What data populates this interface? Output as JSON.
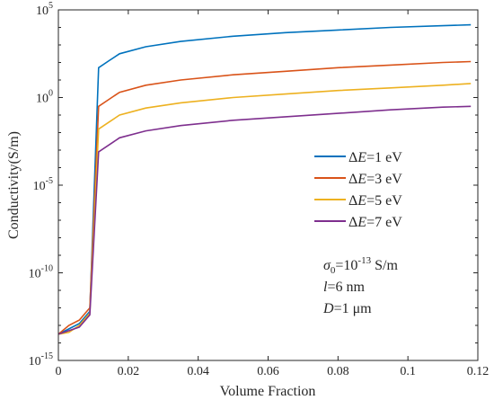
{
  "chart_data": {
    "type": "line",
    "xlabel": "Volume Fraction",
    "ylabel": "Conductivity(S/m)",
    "yscale": "log",
    "xlim": [
      0,
      0.12
    ],
    "ylim_exp": [
      -15,
      5
    ],
    "x_ticks": [
      "0",
      "0.02",
      "0.04",
      "0.06",
      "0.08",
      "0.1",
      "0.12"
    ],
    "y_ticks": [
      {
        "base": "10",
        "exp": "5"
      },
      {
        "base": "10",
        "exp": "0"
      },
      {
        "base": "10",
        "exp": "-5"
      },
      {
        "base": "10",
        "exp": "-10"
      },
      {
        "base": "10",
        "exp": "-15"
      }
    ],
    "legend_position": "right",
    "grid": false,
    "series": [
      {
        "name": "ΔE=1 eV",
        "label_sym": "Δ",
        "label_var": "E",
        "label_rest": "=1 eV",
        "color": "#0072BD",
        "x": [
          0,
          0.003,
          0.006,
          0.009,
          0.0115,
          0.0145,
          0.0175,
          0.025,
          0.035,
          0.05,
          0.065,
          0.08,
          0.095,
          0.11,
          0.118
        ],
        "log10_y": [
          -13.5,
          -13.2,
          -12.9,
          -12.2,
          1.7,
          2.1,
          2.5,
          2.9,
          3.2,
          3.5,
          3.7,
          3.85,
          4.0,
          4.1,
          4.15
        ]
      },
      {
        "name": "ΔE=3 eV",
        "label_sym": "Δ",
        "label_var": "E",
        "label_rest": "=3 eV",
        "color": "#D95319",
        "x": [
          0,
          0.003,
          0.006,
          0.009,
          0.0115,
          0.0145,
          0.0175,
          0.025,
          0.035,
          0.05,
          0.065,
          0.08,
          0.095,
          0.11,
          0.118
        ],
        "log10_y": [
          -13.5,
          -13.0,
          -12.7,
          -12.0,
          -0.5,
          -0.1,
          0.3,
          0.7,
          1.0,
          1.3,
          1.5,
          1.7,
          1.85,
          2.0,
          2.05
        ]
      },
      {
        "name": "ΔE=5 eV",
        "label_sym": "Δ",
        "label_var": "E",
        "label_rest": "=5 eV",
        "color": "#EDB120",
        "x": [
          0,
          0.003,
          0.006,
          0.009,
          0.0115,
          0.0145,
          0.0175,
          0.025,
          0.035,
          0.05,
          0.065,
          0.08,
          0.095,
          0.11,
          0.118
        ],
        "log10_y": [
          -13.5,
          -13.4,
          -13.0,
          -12.3,
          -1.8,
          -1.4,
          -1.0,
          -0.6,
          -0.3,
          0.0,
          0.2,
          0.4,
          0.55,
          0.7,
          0.8
        ]
      },
      {
        "name": "ΔE=7 eV",
        "label_sym": "Δ",
        "label_var": "E",
        "label_rest": "=7 eV",
        "color": "#7E2F8E",
        "x": [
          0,
          0.003,
          0.006,
          0.009,
          0.0115,
          0.0145,
          0.0175,
          0.025,
          0.035,
          0.05,
          0.065,
          0.08,
          0.095,
          0.11,
          0.118
        ],
        "log10_y": [
          -13.5,
          -13.3,
          -13.1,
          -12.4,
          -3.1,
          -2.7,
          -2.3,
          -1.9,
          -1.6,
          -1.3,
          -1.1,
          -0.9,
          -0.7,
          -0.55,
          -0.5
        ]
      }
    ],
    "annotations": {
      "sigma": {
        "sym": "σ",
        "sub": "0",
        "rest": "=10",
        "exp": "-13",
        "unit": " S/m"
      },
      "l": {
        "var": "l",
        "rest": "=6 nm"
      },
      "D": {
        "var": "D",
        "rest": "=1 μm"
      }
    }
  }
}
